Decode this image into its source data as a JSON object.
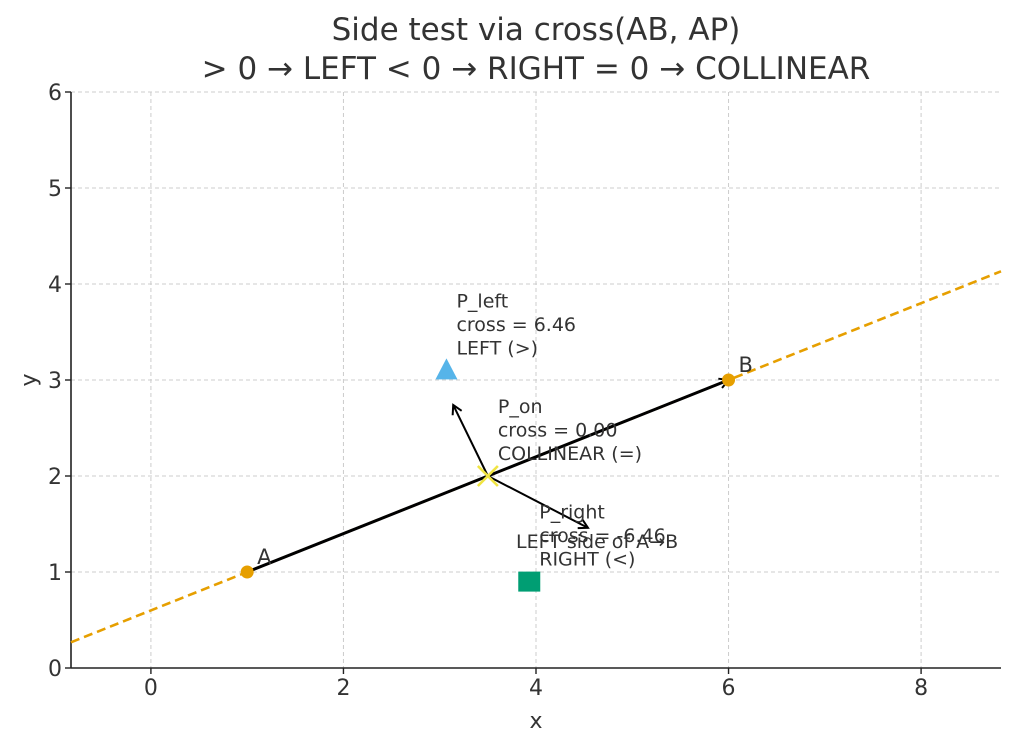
{
  "chart_data": {
    "type": "scatter",
    "title_lines": [
      "Side test via cross(AB, AP)",
      "> 0 → LEFT   < 0 → RIGHT   = 0 → COLLINEAR"
    ],
    "xlabel": "x",
    "ylabel": "y",
    "xlim": [
      -0.83,
      8.83
    ],
    "ylim": [
      0,
      6
    ],
    "xticks": [
      "0",
      "2",
      "4",
      "6",
      "8"
    ],
    "yticks": [
      "0",
      "1",
      "2",
      "3",
      "4",
      "5",
      "6"
    ],
    "grid": true,
    "segment": {
      "A": {
        "label": "A",
        "x": 1,
        "y": 1
      },
      "B": {
        "label": "B",
        "x": 6,
        "y": 3
      },
      "color": "#e69f00",
      "extended_line_style": "dashed"
    },
    "normal_arrows": [
      {
        "from": [
          3.5,
          2.0
        ],
        "to": [
          3.14,
          2.74
        ]
      },
      {
        "from": [
          3.5,
          2.0
        ],
        "to": [
          4.54,
          1.46
        ]
      }
    ],
    "normal_label": "LEFT side of A→B",
    "points": [
      {
        "name": "P_left",
        "x": 3.07,
        "y": 3.1,
        "marker": "triangle",
        "color": "#56b4e9",
        "lines": [
          "P_left",
          "cross = 6.46",
          "LEFT (>)"
        ]
      },
      {
        "name": "P_on",
        "x": 3.5,
        "y": 2.0,
        "marker": "x",
        "color": "#f0e442",
        "lines": [
          "P_on",
          "cross = 0.00",
          "COLLINEAR (=)"
        ]
      },
      {
        "name": "P_right",
        "x": 3.93,
        "y": 0.9,
        "marker": "square",
        "color": "#009e73",
        "lines": [
          "P_right",
          "cross = -6.46",
          "RIGHT (<)"
        ]
      }
    ]
  }
}
